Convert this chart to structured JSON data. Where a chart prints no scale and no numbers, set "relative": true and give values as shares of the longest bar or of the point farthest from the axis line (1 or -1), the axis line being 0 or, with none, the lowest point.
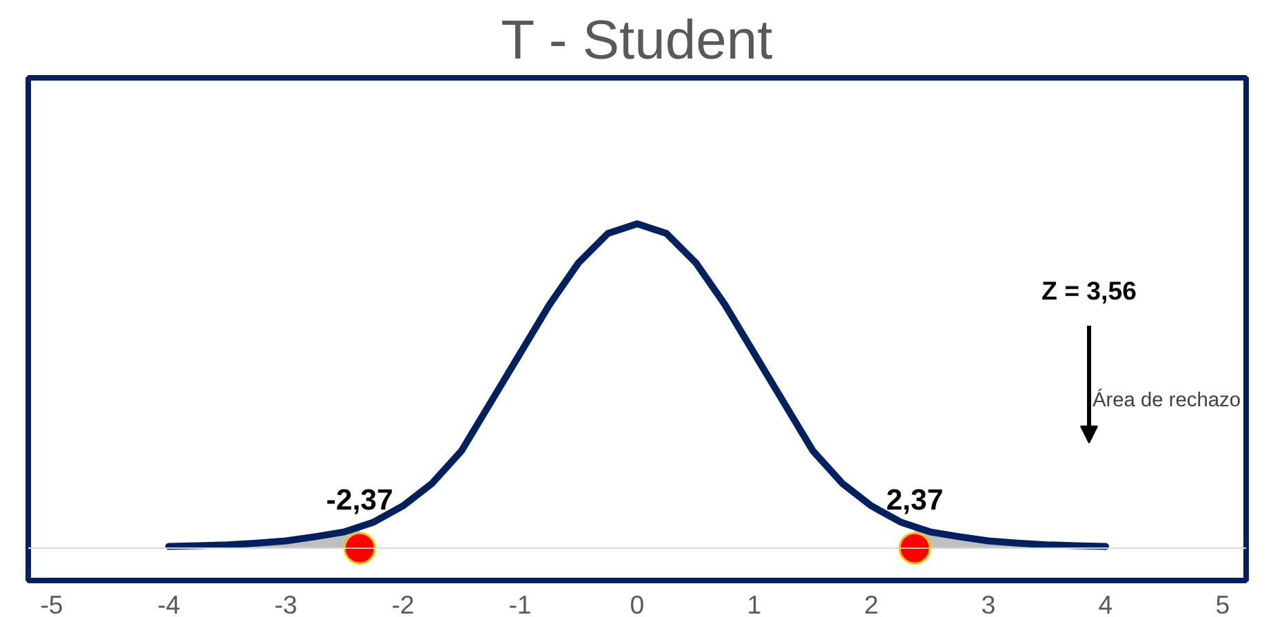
{
  "chart_data": {
    "type": "line",
    "title": "T - Student",
    "relative": true,
    "xlim": [
      -5.2,
      5.2
    ],
    "xticks": [
      -5,
      -4,
      -3,
      -2,
      -1,
      0,
      1,
      2,
      3,
      4,
      5
    ],
    "grid": false,
    "series": [
      {
        "type": "area",
        "color": "#bfbfbf",
        "x": [
          -4,
          -3.75,
          -3.5,
          -3.25,
          -3,
          -2.75,
          -2.5,
          -2.37
        ],
        "values": [
          0.005,
          0.007,
          0.01,
          0.015,
          0.022,
          0.035,
          0.05,
          0.06
        ]
      },
      {
        "type": "area",
        "color": "#bfbfbf",
        "x": [
          2.37,
          2.5,
          2.75,
          3,
          3.25,
          3.5,
          3.75,
          4
        ],
        "values": [
          0.06,
          0.05,
          0.035,
          0.022,
          0.015,
          0.01,
          0.007,
          0.005
        ]
      },
      {
        "color": "#002060",
        "x": [
          -4,
          -3.75,
          -3.5,
          -3.25,
          -3,
          -2.75,
          -2.5,
          -2.25,
          -2,
          -1.75,
          -1.5,
          -1.25,
          -1,
          -0.75,
          -0.5,
          -0.25,
          0,
          0.25,
          0.5,
          0.75,
          1,
          1.25,
          1.5,
          1.75,
          2,
          2.25,
          2.5,
          2.75,
          3,
          3.25,
          3.5,
          3.75,
          4
        ],
        "values": [
          0.005,
          0.007,
          0.01,
          0.015,
          0.022,
          0.035,
          0.05,
          0.08,
          0.13,
          0.2,
          0.3,
          0.45,
          0.6,
          0.75,
          0.88,
          0.97,
          1,
          0.97,
          0.88,
          0.75,
          0.6,
          0.45,
          0.3,
          0.2,
          0.13,
          0.08,
          0.05,
          0.035,
          0.022,
          0.015,
          0.01,
          0.007,
          0.005
        ]
      },
      {
        "type": "scatter",
        "color": "#ff0000",
        "marker": "circle",
        "x": [
          -2.37,
          2.37
        ],
        "values": [
          0,
          0
        ]
      }
    ],
    "annotations": [
      {
        "text": "-2,37",
        "x": -2.37,
        "y": 0
      },
      {
        "text": "2,37",
        "x": 2.37,
        "y": 0
      },
      "Z = 3,56",
      "Área de rechazo"
    ]
  }
}
